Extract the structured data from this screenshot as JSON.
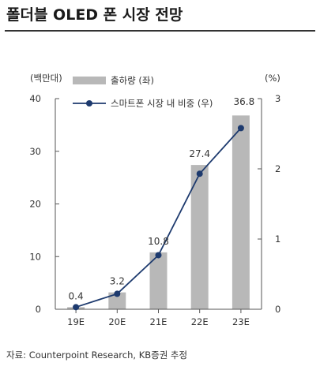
{
  "title": "폴더블 OLED 폰 시장 전망",
  "source": "자료: Counterpoint Research, KB증권 추정",
  "chart_data": {
    "type": "bar",
    "categories": [
      "19E",
      "20E",
      "21E",
      "22E",
      "23E"
    ],
    "series": [
      {
        "name": "출하량 (좌)",
        "type": "bar",
        "axis": "left",
        "values": [
          0.4,
          3.2,
          10.8,
          27.4,
          36.8
        ],
        "labels": [
          "0.4",
          "3.2",
          "10.8",
          "27.4",
          "36.8"
        ],
        "color": "#b8b8b8"
      },
      {
        "name": "스마트폰 시장 내 비중 (우)",
        "type": "line",
        "axis": "right",
        "values": [
          0.03,
          0.22,
          0.77,
          1.93,
          2.58
        ],
        "color": "#1d3a6e"
      }
    ],
    "y_left": {
      "unit": "(백만대)",
      "ylim": [
        0,
        40
      ],
      "ticks": [
        "0",
        "10",
        "20",
        "30",
        "40"
      ]
    },
    "y_right": {
      "unit": "(%)",
      "ylim": [
        0,
        3
      ],
      "ticks": [
        "0",
        "1",
        "2",
        "3"
      ]
    },
    "grid": false,
    "legend": "top-left"
  }
}
